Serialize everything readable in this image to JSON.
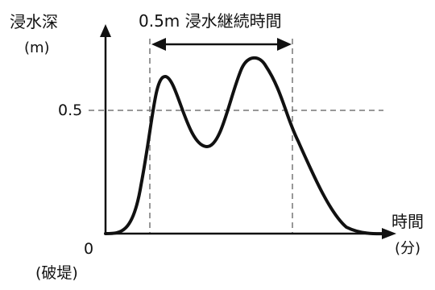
{
  "diagram": {
    "y_axis_label_line1": "浸水深",
    "y_axis_label_line2": "(m)",
    "x_axis_label_line1": "時間",
    "x_axis_label_line2": "(分)",
    "origin_label": "0",
    "origin_sublabel": "(破堤)",
    "threshold_label": "0.5",
    "duration_label": "0.5m 浸水継続時間"
  },
  "colors": {
    "ink": "#111111",
    "guide": "#777777",
    "background": "#ffffff"
  }
}
